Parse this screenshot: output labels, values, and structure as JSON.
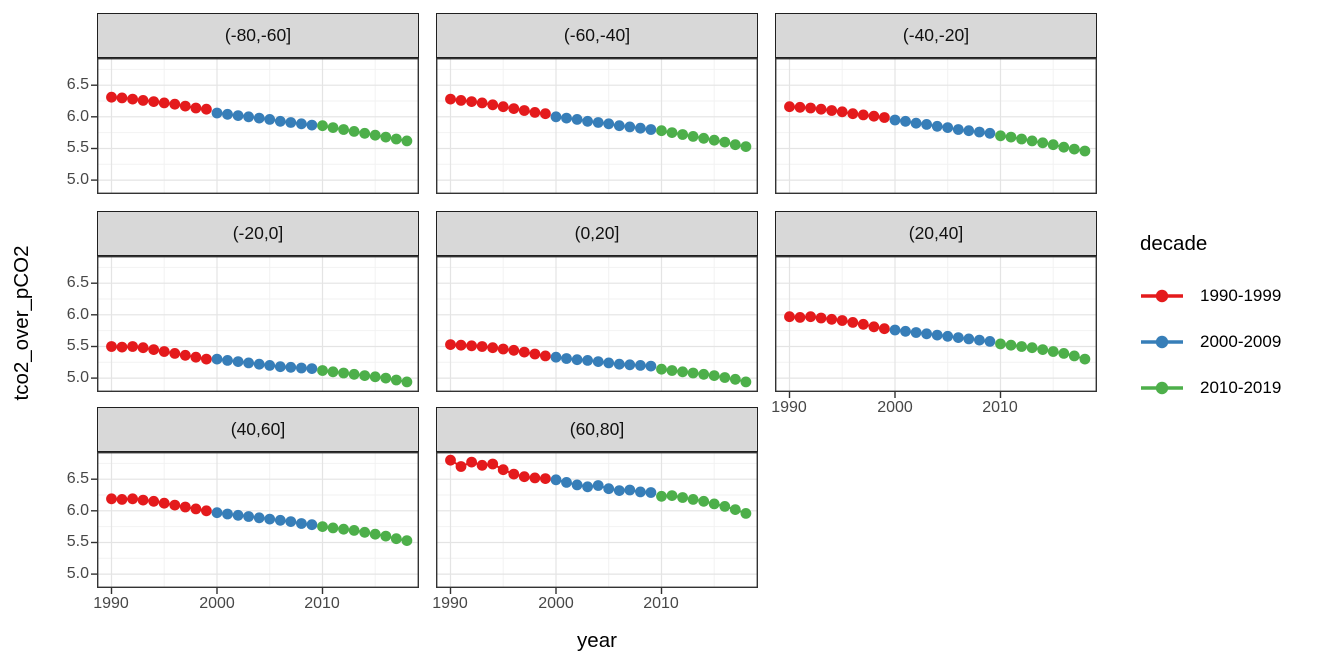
{
  "chart_data": {
    "type": "scatter",
    "title": "",
    "xlabel": "year",
    "ylabel": "tco2_over_pCO2",
    "grid": true,
    "xlim": [
      1988.63,
      2019.15
    ],
    "ylim": [
      4.78,
      6.93
    ],
    "x_ticks": [
      1990,
      2000,
      2010
    ],
    "x_tick_labels": [
      "1990",
      "2000",
      "2010"
    ],
    "y_ticks": [
      6.5,
      6.0,
      5.5,
      5.0
    ],
    "y_tick_labels": [
      "6.5",
      "6.0",
      "5.5",
      "5.0"
    ],
    "x_minor": [
      1995,
      2005,
      2015
    ],
    "y_minor": [
      6.75,
      6.25,
      5.75,
      5.25,
      4.75
    ],
    "style": {
      "strip_bg": "#D8D8D8",
      "grid_major": "#E4E4E4",
      "grid_minor": "#F2F2F2",
      "panel_border": "#333333",
      "tick_color": "#333333"
    },
    "legend": {
      "title": "decade",
      "position": "right"
    },
    "series_defs": [
      {
        "name": "1990-1999",
        "color": "#E41A1C",
        "start_year": 1990
      },
      {
        "name": "2000-2009",
        "color": "#377EB8",
        "start_year": 2000
      },
      {
        "name": "2010-2019",
        "color": "#4DAF4A",
        "start_year": 2010
      }
    ],
    "facets": [
      {
        "label": "(-80,-60]",
        "values": [
          [
            6.31,
            6.3,
            6.28,
            6.26,
            6.24,
            6.22,
            6.2,
            6.17,
            6.14,
            6.12
          ],
          [
            6.06,
            6.04,
            6.02,
            6.0,
            5.98,
            5.96,
            5.93,
            5.91,
            5.89,
            5.87
          ],
          [
            5.86,
            5.83,
            5.8,
            5.77,
            5.74,
            5.71,
            5.68,
            5.65,
            5.62
          ]
        ]
      },
      {
        "label": "(-60,-40]",
        "values": [
          [
            6.28,
            6.26,
            6.24,
            6.22,
            6.19,
            6.16,
            6.13,
            6.1,
            6.07,
            6.05
          ],
          [
            6.0,
            5.98,
            5.96,
            5.93,
            5.91,
            5.89,
            5.86,
            5.84,
            5.82,
            5.8
          ],
          [
            5.78,
            5.75,
            5.72,
            5.69,
            5.66,
            5.63,
            5.6,
            5.56,
            5.53
          ]
        ]
      },
      {
        "label": "(-40,-20]",
        "values": [
          [
            6.16,
            6.15,
            6.14,
            6.12,
            6.1,
            6.08,
            6.05,
            6.03,
            6.01,
            5.99
          ],
          [
            5.95,
            5.93,
            5.9,
            5.88,
            5.85,
            5.83,
            5.8,
            5.78,
            5.76,
            5.74
          ],
          [
            5.7,
            5.68,
            5.65,
            5.62,
            5.59,
            5.56,
            5.52,
            5.49,
            5.46
          ]
        ]
      },
      {
        "label": "(-20,0]",
        "values": [
          [
            5.5,
            5.49,
            5.5,
            5.48,
            5.45,
            5.42,
            5.39,
            5.36,
            5.33,
            5.3
          ],
          [
            5.3,
            5.28,
            5.26,
            5.24,
            5.22,
            5.2,
            5.18,
            5.17,
            5.16,
            5.15
          ],
          [
            5.12,
            5.1,
            5.08,
            5.06,
            5.04,
            5.02,
            5.0,
            4.97,
            4.94
          ]
        ]
      },
      {
        "label": "(0,20]",
        "values": [
          [
            5.53,
            5.52,
            5.51,
            5.5,
            5.48,
            5.46,
            5.44,
            5.41,
            5.38,
            5.35
          ],
          [
            5.33,
            5.31,
            5.29,
            5.28,
            5.26,
            5.24,
            5.22,
            5.21,
            5.2,
            5.19
          ],
          [
            5.14,
            5.12,
            5.1,
            5.08,
            5.06,
            5.04,
            5.01,
            4.98,
            4.94
          ]
        ]
      },
      {
        "label": "(20,40]",
        "values": [
          [
            5.97,
            5.96,
            5.97,
            5.95,
            5.93,
            5.91,
            5.88,
            5.85,
            5.81,
            5.78
          ],
          [
            5.76,
            5.74,
            5.72,
            5.7,
            5.68,
            5.66,
            5.64,
            5.62,
            5.6,
            5.58
          ],
          [
            5.54,
            5.52,
            5.5,
            5.48,
            5.45,
            5.42,
            5.39,
            5.35,
            5.3
          ]
        ]
      },
      {
        "label": "(40,60]",
        "values": [
          [
            6.19,
            6.18,
            6.19,
            6.17,
            6.15,
            6.12,
            6.09,
            6.06,
            6.03,
            6.0
          ],
          [
            5.97,
            5.95,
            5.93,
            5.91,
            5.89,
            5.87,
            5.85,
            5.83,
            5.8,
            5.78
          ],
          [
            5.75,
            5.73,
            5.71,
            5.69,
            5.66,
            5.63,
            5.6,
            5.56,
            5.53
          ]
        ]
      },
      {
        "label": "(60,80]",
        "values": [
          [
            6.8,
            6.7,
            6.77,
            6.72,
            6.74,
            6.65,
            6.58,
            6.54,
            6.52,
            6.51
          ],
          [
            6.49,
            6.45,
            6.41,
            6.38,
            6.4,
            6.35,
            6.32,
            6.33,
            6.3,
            6.29
          ],
          [
            6.23,
            6.24,
            6.21,
            6.18,
            6.15,
            6.11,
            6.07,
            6.02,
            5.96
          ]
        ]
      }
    ]
  }
}
